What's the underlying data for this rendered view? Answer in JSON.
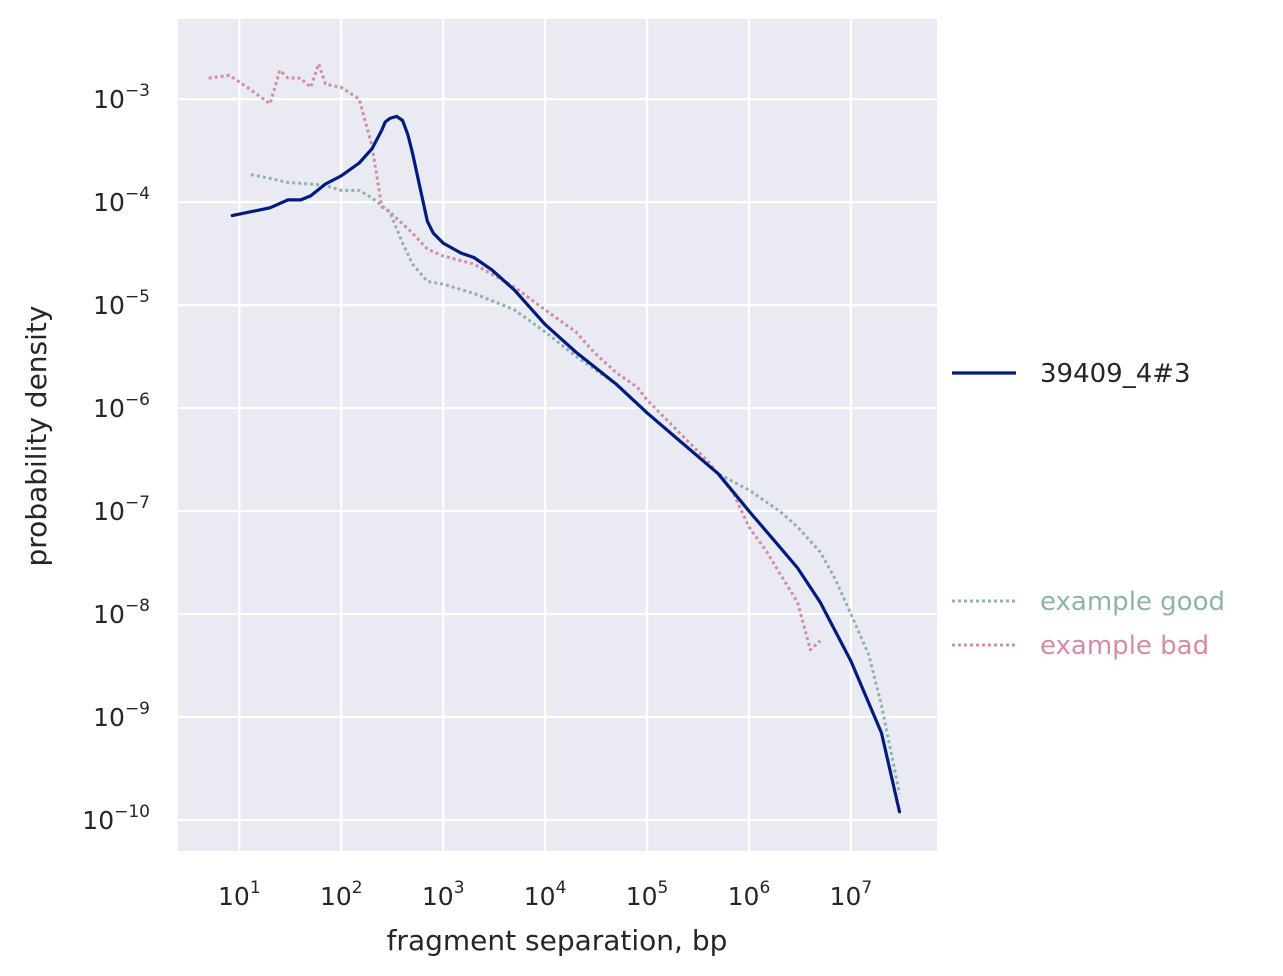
{
  "chart_data": {
    "type": "line",
    "title": "",
    "xlabel": "fragment separation, bp",
    "ylabel": "probability density",
    "xscale": "log",
    "yscale": "log",
    "xlim": [
      2.5,
      70000000
    ],
    "ylim": [
      5e-11,
      0.006
    ],
    "grid": true,
    "background": "#eaeaf2",
    "x_ticks": [
      {
        "base": "10",
        "exp": "1",
        "value": 10
      },
      {
        "base": "10",
        "exp": "2",
        "value": 100
      },
      {
        "base": "10",
        "exp": "3",
        "value": 1000
      },
      {
        "base": "10",
        "exp": "4",
        "value": 10000
      },
      {
        "base": "10",
        "exp": "5",
        "value": 100000
      },
      {
        "base": "10",
        "exp": "6",
        "value": 1000000
      },
      {
        "base": "10",
        "exp": "7",
        "value": 10000000
      }
    ],
    "y_ticks": [
      {
        "base": "10",
        "exp": "−3",
        "value": 0.001
      },
      {
        "base": "10",
        "exp": "−4",
        "value": 0.0001
      },
      {
        "base": "10",
        "exp": "−5",
        "value": 1e-05
      },
      {
        "base": "10",
        "exp": "−6",
        "value": 1e-06
      },
      {
        "base": "10",
        "exp": "−7",
        "value": 1e-07
      },
      {
        "base": "10",
        "exp": "−8",
        "value": 1e-08
      },
      {
        "base": "10",
        "exp": "−9",
        "value": 1e-09
      },
      {
        "base": "10",
        "exp": "−10",
        "value": 1e-10
      }
    ],
    "legend_placement": "right",
    "series": [
      {
        "name": "39409_4#3",
        "color": "#001c7f",
        "style": "solid",
        "x": [
          8.5,
          20,
          30,
          40,
          50,
          70,
          100,
          150,
          200,
          250,
          270,
          300,
          350,
          400,
          450,
          500,
          600,
          700,
          800,
          1000,
          1500,
          2000,
          3000,
          5000,
          10000,
          20000,
          50000,
          100000,
          200000,
          500000,
          1000000,
          2000000,
          3000000,
          5000000,
          10000000,
          20000000,
          30000000
        ],
        "y": [
          7.4e-05,
          8.8e-05,
          0.000105,
          0.000105,
          0.000115,
          0.00015,
          0.00018,
          0.00024,
          0.00033,
          0.0005,
          0.0006,
          0.00065,
          0.00068,
          0.00062,
          0.00045,
          0.0003,
          0.00013,
          6.5e-05,
          5e-05,
          4e-05,
          3.2e-05,
          2.9e-05,
          2.2e-05,
          1.4e-05,
          6.5e-06,
          3.5e-06,
          1.7e-06,
          9e-07,
          5e-07,
          2.3e-07,
          1e-07,
          4.5e-08,
          2.8e-08,
          1.3e-08,
          3.5e-09,
          7e-10,
          1.2e-10
        ]
      },
      {
        "name": "example good",
        "color": "#8fb3ac",
        "style": "dotted",
        "x": [
          13,
          20,
          30,
          50,
          70,
          100,
          150,
          200,
          300,
          400,
          500,
          700,
          1000,
          2000,
          5000,
          10000,
          20000,
          50000,
          100000,
          200000,
          500000,
          1000000,
          2000000,
          3000000,
          5000000,
          7000000,
          10000000,
          15000000,
          20000000,
          30000000
        ],
        "y": [
          0.000185,
          0.00017,
          0.000155,
          0.00015,
          0.000145,
          0.00013,
          0.00013,
          0.00011,
          8e-05,
          4e-05,
          2.5e-05,
          1.7e-05,
          1.6e-05,
          1.3e-05,
          9e-06,
          5.5e-06,
          3.2e-06,
          1.7e-06,
          9e-07,
          5e-07,
          2.3e-07,
          1.6e-07,
          1e-07,
          7e-08,
          4e-08,
          2.2e-08,
          1e-08,
          4e-09,
          1.3e-09,
          1.8e-10
        ]
      },
      {
        "name": "example bad",
        "color": "#d48ca6",
        "style": "dotted",
        "x": [
          5,
          8,
          12,
          20,
          25,
          30,
          40,
          50,
          60,
          70,
          100,
          150,
          200,
          250,
          300,
          500,
          700,
          1000,
          2000,
          3000,
          5000,
          10000,
          20000,
          30000,
          50000,
          80000,
          100000,
          200000,
          400000,
          700000,
          1000000,
          1500000,
          2000000,
          3000000,
          4000000,
          5000000
        ],
        "y": [
          0.0016,
          0.0017,
          0.0013,
          0.0009,
          0.0019,
          0.0016,
          0.0016,
          0.0013,
          0.0022,
          0.0014,
          0.0013,
          0.001,
          0.00035,
          9e-05,
          8e-05,
          5e-05,
          3.5e-05,
          3e-05,
          2.5e-05,
          2e-05,
          1.5e-05,
          9e-06,
          5.5e-06,
          3.5e-06,
          2.2e-06,
          1.6e-06,
          1.2e-06,
          6e-07,
          3e-07,
          1.5e-07,
          7e-08,
          4e-08,
          2.5e-08,
          1.3e-08,
          4.5e-09,
          5.5e-09
        ]
      }
    ]
  }
}
